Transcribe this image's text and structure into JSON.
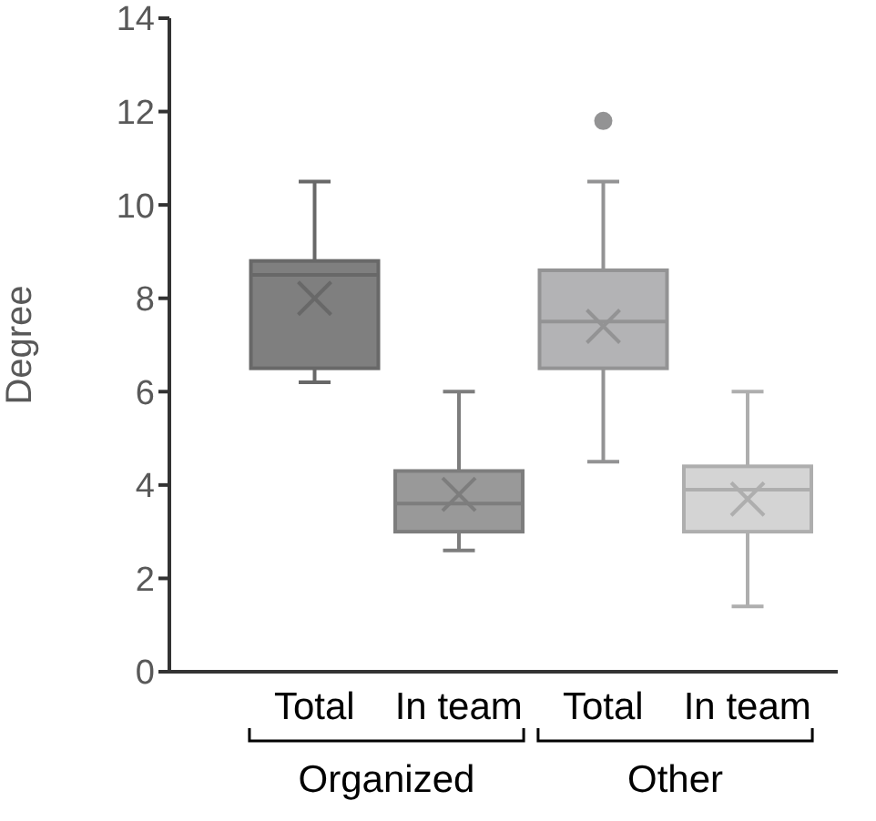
{
  "chart_data": {
    "type": "box",
    "ylabel": "Degree",
    "categories": [
      "Total",
      "In team",
      "Total",
      "In team"
    ],
    "boxes": [
      {
        "low": 6.2,
        "q1": 6.5,
        "median": 8.5,
        "q3": 8.8,
        "high": 10.5,
        "mean": 8.0
      },
      {
        "low": 2.6,
        "q1": 3.0,
        "median": 3.6,
        "q3": 4.3,
        "high": 6.0,
        "mean": 3.8
      },
      {
        "low": 4.5,
        "q1": 6.5,
        "median": 7.5,
        "q3": 8.6,
        "high": 10.5,
        "mean": 7.4,
        "outliers": [
          11.8
        ]
      },
      {
        "low": 1.4,
        "q1": 3.0,
        "median": 3.9,
        "q3": 4.4,
        "high": 6.0,
        "mean": 3.7
      }
    ],
    "colors": [
      "#7f7f7f",
      "#999999",
      "#b3b3b5",
      "#d4d4d4"
    ],
    "ylim": [
      0,
      14
    ],
    "yticks": [
      0,
      2,
      4,
      6,
      8,
      10,
      12,
      14
    ],
    "annotations": [
      "Organized",
      "Other"
    ]
  }
}
